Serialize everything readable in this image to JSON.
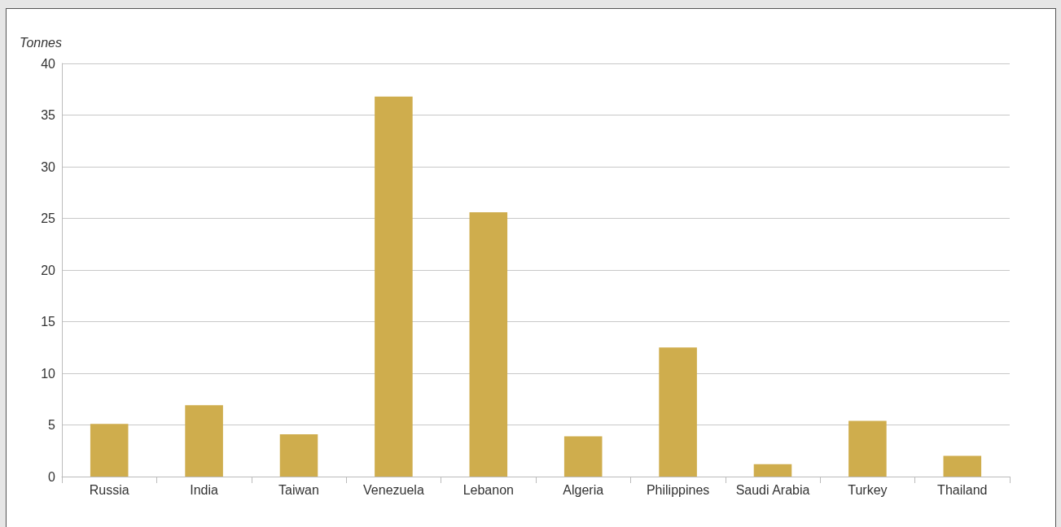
{
  "chart_data": {
    "type": "bar",
    "ylabel": "Tonnes",
    "categories": [
      "Russia",
      "India",
      "Taiwan",
      "Venezuela",
      "Lebanon",
      "Algeria",
      "Philippines",
      "Saudi Arabia",
      "Turkey",
      "Thailand"
    ],
    "values": [
      5.1,
      6.9,
      4.1,
      36.8,
      25.6,
      3.9,
      12.5,
      1.2,
      5.4,
      2.0
    ],
    "color": "#cfad4d",
    "ylim": [
      0,
      40
    ],
    "yticks": [
      0,
      5,
      10,
      15,
      20,
      25,
      30,
      35,
      40
    ],
    "grid": "y"
  }
}
